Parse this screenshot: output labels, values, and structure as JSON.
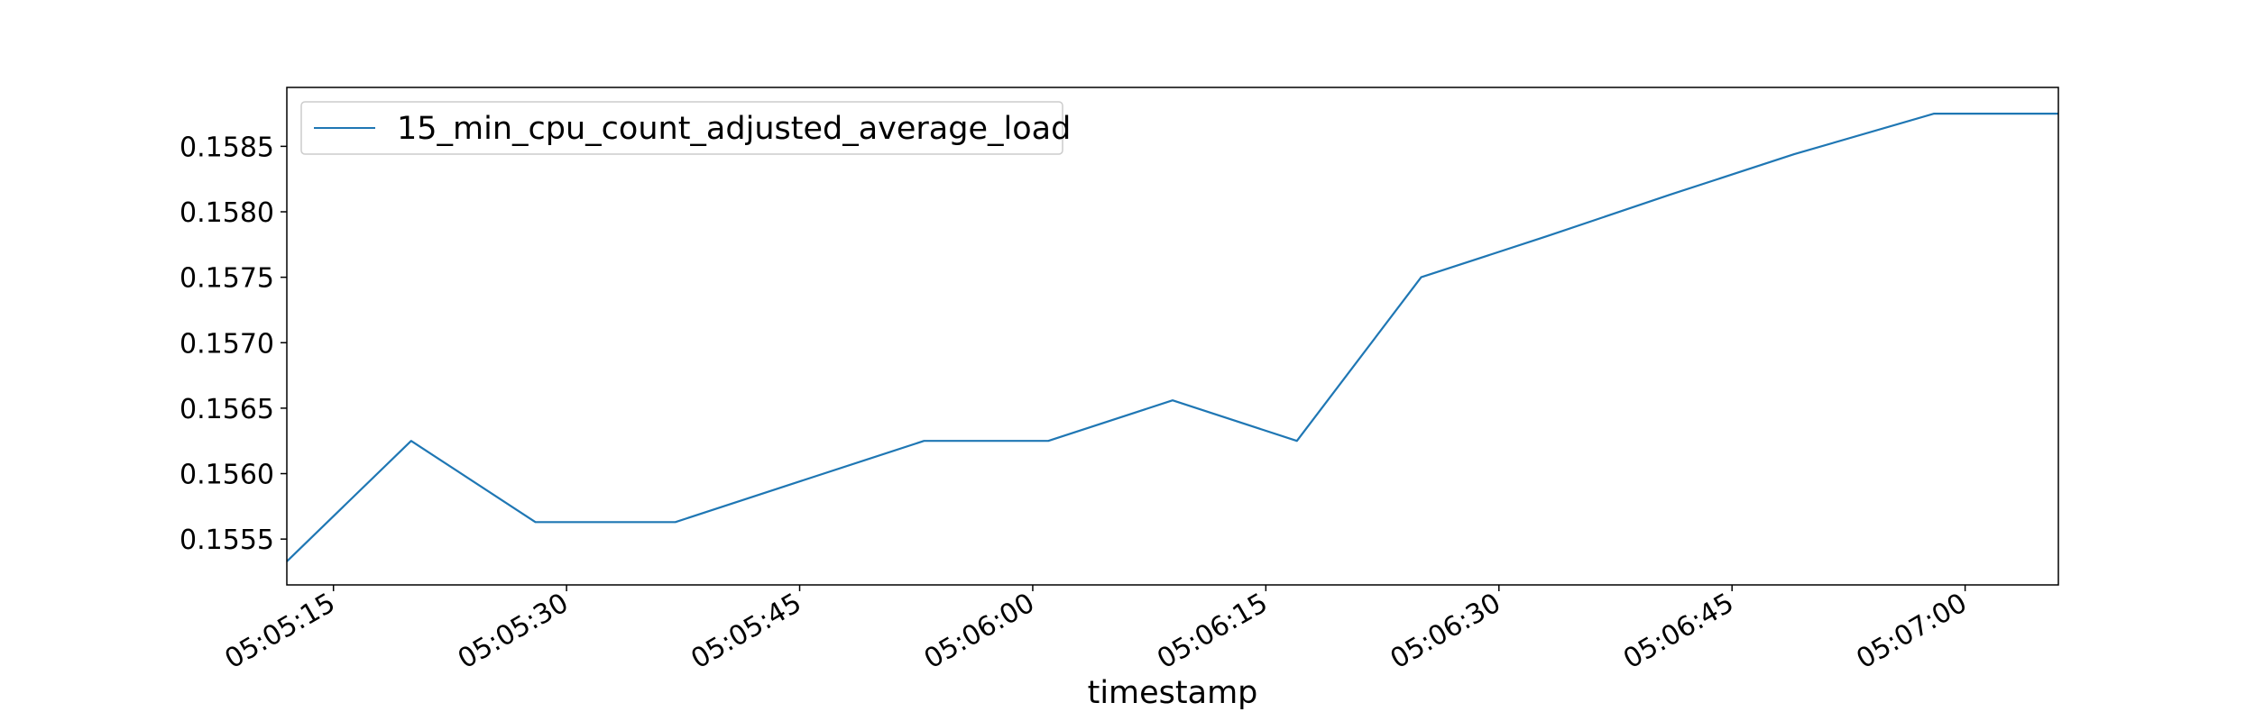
{
  "chart_data": {
    "type": "line",
    "title": "",
    "xlabel": "timestamp",
    "ylabel": "",
    "x_tick_labels": [
      "05:05:15",
      "05:05:30",
      "05:05:45",
      "05:06:00",
      "05:06:15",
      "05:06:30",
      "05:06:45",
      "05:07:00"
    ],
    "x_tick_seconds": [
      "05:05:15",
      "05:05:30",
      "05:05:45",
      "05:06:00",
      "05:06:15",
      "05:06:30",
      "05:06:45",
      "05:07:00"
    ],
    "y_tick_labels": [
      "0.1555",
      "0.1560",
      "0.1565",
      "0.1570",
      "0.1575",
      "0.1580",
      "0.1585"
    ],
    "y_ticks": [
      0.1555,
      0.156,
      0.1565,
      0.157,
      0.1575,
      0.158,
      0.1585
    ],
    "xlim": [
      "05:05:12",
      "05:07:06"
    ],
    "ylim": [
      0.15515,
      0.15895
    ],
    "grid": false,
    "legend_position": "top-left",
    "series": [
      {
        "name": "15_min_cpu_count_adjusted_average_load",
        "color": "#1f77b4",
        "x": [
          "05:05:12",
          "05:05:20",
          "05:05:28",
          "05:05:37",
          "05:05:45",
          "05:05:53",
          "05:06:01",
          "05:06:09",
          "05:06:17",
          "05:06:25",
          "05:06:33",
          "05:06:41",
          "05:06:49",
          "05:06:58",
          "05:07:06"
        ],
        "y": [
          0.15533,
          0.15625,
          0.15563,
          0.15563,
          0.15594,
          0.15625,
          0.15625,
          0.15656,
          0.15625,
          0.1575,
          0.15781,
          0.15813,
          0.15844,
          0.15875,
          0.15875
        ]
      }
    ]
  }
}
